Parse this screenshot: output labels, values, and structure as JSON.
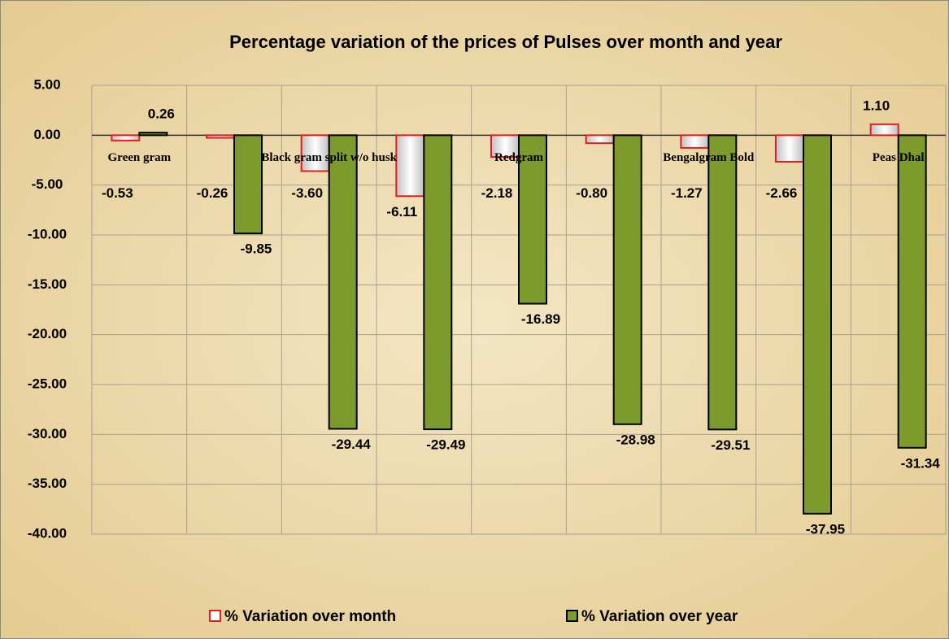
{
  "chart_data": {
    "type": "bar",
    "title": "Percentage variation of the prices of Pulses over month and year",
    "categories": [
      "Green gram",
      null,
      "Black gram  split w/o husk",
      null,
      "Redgram",
      null,
      "Bengalgram Bold",
      null,
      "Peas Dhal"
    ],
    "series": [
      {
        "name": "% Variation over month",
        "color": "#e8e8e8",
        "border": "#e02020",
        "values": [
          -0.53,
          -0.26,
          -3.6,
          -6.11,
          -2.18,
          -0.8,
          -1.27,
          -2.66,
          1.1
        ],
        "value_labels": [
          "-0.53",
          "-0.26",
          "-3.60",
          "-6.11",
          "-2.18",
          "-0.80",
          "-1.27",
          "-2.66",
          "1.10"
        ]
      },
      {
        "name": "% Variation over year",
        "color": "#7d9a2c",
        "border": "#000000",
        "values": [
          0.26,
          -9.85,
          -29.44,
          -29.49,
          -16.89,
          -28.98,
          -29.51,
          -37.95,
          -31.34
        ],
        "value_labels": [
          "0.26",
          "-9.85",
          "-29.44",
          "-29.49",
          "-16.89",
          "-28.98",
          "-29.51",
          "-37.95",
          "-31.34"
        ]
      }
    ],
    "ylim": [
      -40,
      5
    ],
    "yticks": [
      {
        "value": 5,
        "label": "5.00"
      },
      {
        "value": 0,
        "label": "0.00"
      },
      {
        "value": -5,
        "label": "-5.00"
      },
      {
        "value": -10,
        "label": "-10.00"
      },
      {
        "value": -15,
        "label": "-15.00"
      },
      {
        "value": -20,
        "label": "-20.00"
      },
      {
        "value": -25,
        "label": "-25.00"
      },
      {
        "value": -30,
        "label": "-30.00"
      },
      {
        "value": -35,
        "label": "-35.00"
      },
      {
        "value": -40,
        "label": "-40.00"
      }
    ],
    "grid": true,
    "legend": "bottom"
  }
}
